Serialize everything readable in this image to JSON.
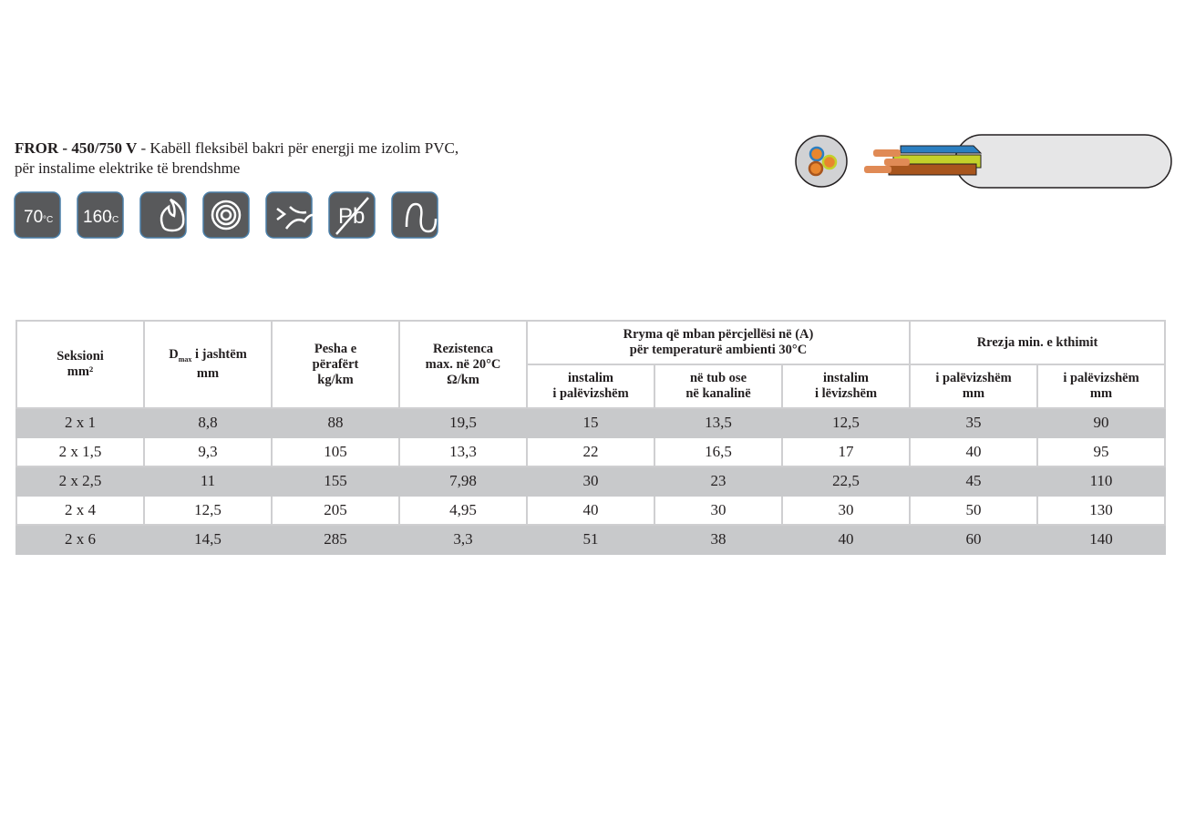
{
  "header": {
    "title_bold": "FROR - 450/750 V",
    "title_rest": "- Kabëll fleksibël bakri për energji me izolim PVC,",
    "subtitle": "për instalime elektrike të brendshme"
  },
  "icons": {
    "temp1": "70",
    "temp1_unit": "°C",
    "temp2": "160",
    "temp2_unit": "°C",
    "lead": "Pb"
  },
  "table": {
    "head": {
      "section": [
        "Seksioni",
        "mm²"
      ],
      "diameter": {
        "symbol": "D",
        "sub": "max",
        "rest": "i jashtëm",
        "unit": "mm"
      },
      "weight": [
        "Pesha e",
        "përafërt",
        "kg/km"
      ],
      "resistance": [
        "Rezistenca",
        "max. në 20°C",
        "Ω/km"
      ],
      "current": [
        "Rryma që mban përcjellësi në (A)",
        "për temperaturë ambienti 30°C"
      ],
      "current_sub": [
        [
          "instalim",
          "i palëvizshëm"
        ],
        [
          "në tub ose",
          "në kanalinë"
        ],
        [
          "instalim",
          "i lëvizshëm"
        ]
      ],
      "bend": [
        "Rrezja min. e kthimit"
      ],
      "bend_sub": [
        [
          "i palëvizshëm",
          "mm"
        ],
        [
          "i palëvizshëm",
          "mm"
        ]
      ]
    },
    "rows": [
      [
        "2 x 1",
        "8,8",
        "88",
        "19,5",
        "15",
        "13,5",
        "12,5",
        "35",
        "90"
      ],
      [
        "2 x 1,5",
        "9,3",
        "105",
        "13,3",
        "22",
        "16,5",
        "17",
        "40",
        "95"
      ],
      [
        "2 x 2,5",
        "11",
        "155",
        "7,98",
        "30",
        "23",
        "22,5",
        "45",
        "110"
      ],
      [
        "2 x 4",
        "12,5",
        "205",
        "4,95",
        "40",
        "30",
        "30",
        "50",
        "130"
      ],
      [
        "2 x 6",
        "14,5",
        "285",
        "3,3",
        "51",
        "38",
        "40",
        "60",
        "140"
      ]
    ]
  }
}
